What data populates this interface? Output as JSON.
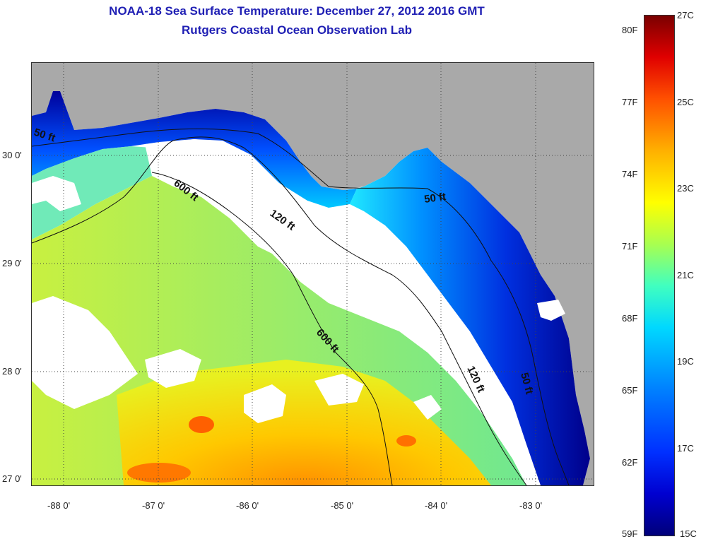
{
  "header": {
    "title": "NOAA-18 Sea Surface Temperature:  December 27, 2012 2016 GMT",
    "subtitle": "Rutgers Coastal Ocean Observation Lab"
  },
  "map": {
    "longitude_labels": [
      "-88 0'",
      "-87 0'",
      "-86 0'",
      "-85 0'",
      "-84 0'",
      "-83 0'"
    ],
    "latitude_labels": [
      "30 0'",
      "29 0'",
      "28 0'",
      "27 0'"
    ],
    "contour_labels": {
      "isobath_50_west": "50 ft",
      "isobath_50_north": "50 ft",
      "isobath_50_east": "50 ft",
      "isobath_120_north": "120 ft",
      "isobath_120_south": "120 ft",
      "isobath_600_north": "600 ft",
      "isobath_600_south": "600 ft"
    },
    "colors": {
      "land": "#a9a9a9",
      "cloud": "#ffffff",
      "contour": "#111111"
    }
  },
  "colorbar": {
    "fahrenheit_labels": [
      "80F",
      "77F",
      "74F",
      "71F",
      "68F",
      "65F",
      "62F",
      "59F"
    ],
    "celsius_labels": [
      "27C",
      "25C",
      "23C",
      "21C",
      "19C",
      "17C",
      "15C"
    ],
    "range_celsius": [
      15,
      27
    ],
    "range_fahrenheit": [
      59,
      80.6
    ]
  }
}
